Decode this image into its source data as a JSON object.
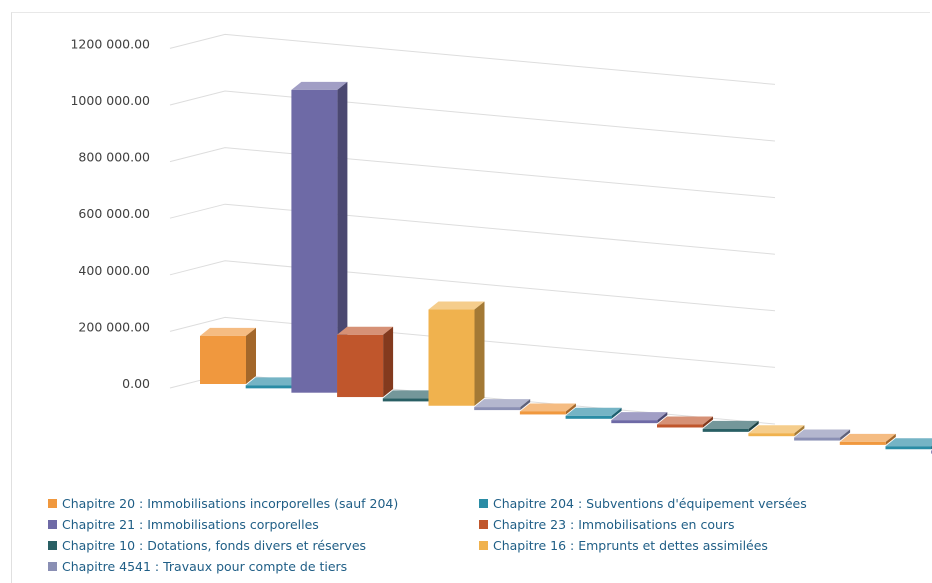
{
  "chart_data": {
    "type": "bar",
    "style": "3d-column",
    "title": "",
    "xlabel": "",
    "ylabel": "",
    "ylim": [
      0,
      1200000
    ],
    "yticks": [
      0,
      200000,
      400000,
      600000,
      800000,
      1000000,
      1200000
    ],
    "ytick_labels": [
      "0.00",
      "200 000.00",
      "400 000.00",
      "600 000.00",
      "800 000.00",
      "1000 000.00",
      "1200 000.00"
    ],
    "grid": true,
    "legend_position": "bottom",
    "groups": 3,
    "series": [
      {
        "name": "Chapitre 20 : Immobilisations incorporelles (sauf 204)",
        "color": "#f0983e",
        "values": [
          170000,
          0,
          0
        ]
      },
      {
        "name": "Chapitre 204 : Subventions d'équipement versées",
        "color": "#2a8ca5",
        "values": [
          0,
          0,
          0
        ]
      },
      {
        "name": "Chapitre 21 : Immobilisations corporelles",
        "color": "#6e6aa6",
        "values": [
          1070000,
          0,
          0
        ]
      },
      {
        "name": "Chapitre 23 : Immobilisations en cours",
        "color": "#c0562c",
        "values": [
          220000,
          0,
          0
        ]
      },
      {
        "name": "Chapitre 10 : Dotations, fonds divers et réserves",
        "color": "#295f64",
        "values": [
          0,
          0,
          0
        ]
      },
      {
        "name": "Chapitre 16 : Emprunts et dettes assimilées",
        "color": "#f0b24e",
        "values": [
          340000,
          0,
          0
        ]
      },
      {
        "name": "Chapitre 4541 : Travaux pour compte de tiers",
        "color": "#8a8fb4",
        "values": [
          0,
          0,
          0
        ]
      }
    ]
  }
}
